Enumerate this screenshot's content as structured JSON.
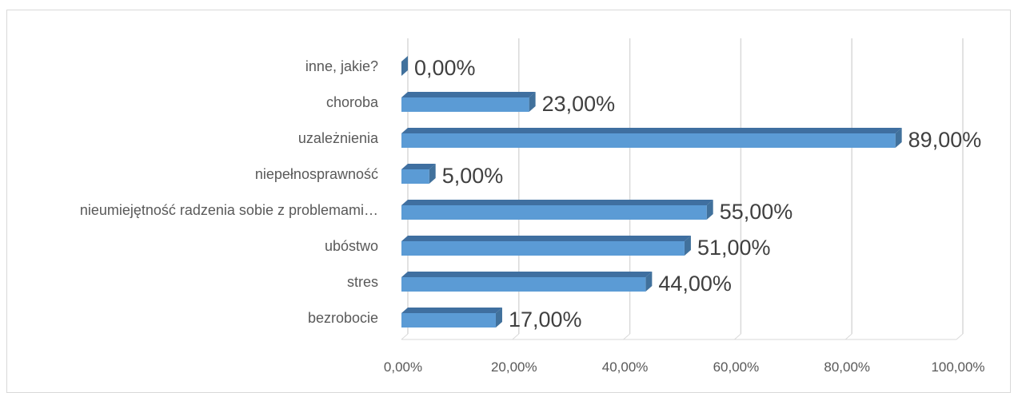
{
  "chart_data": {
    "type": "bar",
    "orientation": "horizontal",
    "title": "",
    "xlabel": "",
    "ylabel": "",
    "categories": [
      "bezrobocie",
      "stres",
      "ubóstwo",
      "nieumiejętność radzenia sobie z problemami…",
      "niepełnosprawność",
      "uzależnienia",
      "choroba",
      "inne, jakie?"
    ],
    "values": [
      17,
      44,
      51,
      55,
      5,
      89,
      23,
      0
    ],
    "value_labels": [
      "17,00%",
      "44,00%",
      "51,00%",
      "55,00%",
      "5,00%",
      "89,00%",
      "23,00%",
      "0,00%"
    ],
    "xlim": [
      0,
      100
    ],
    "x_ticks": [
      0,
      20,
      40,
      60,
      80,
      100
    ],
    "x_tick_labels": [
      "0,00%",
      "20,00%",
      "40,00%",
      "60,00%",
      "80,00%",
      "100,00%"
    ],
    "grid": true,
    "legend": "none",
    "colors": {
      "bar_front": "#5b9bd5",
      "bar_side": "#41719c",
      "bar_top": "#3f6fa0",
      "grid": "#d9d9d9",
      "text": "#595959"
    }
  }
}
